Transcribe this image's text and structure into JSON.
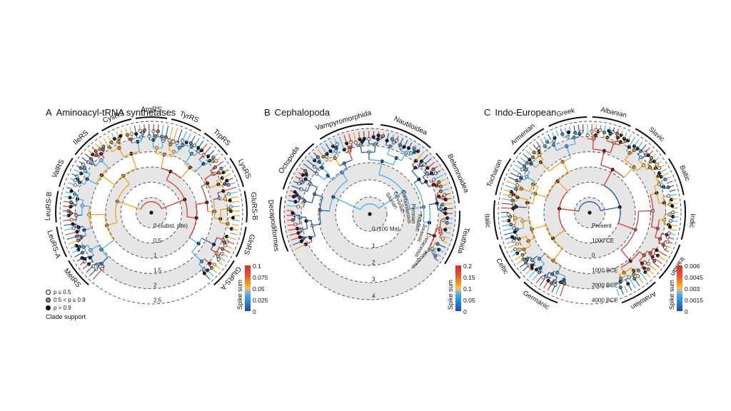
{
  "panels": [
    {
      "letter": "A",
      "title": "Aminoacyl-tRNA synthetases",
      "clades": [
        "MetRS",
        "LeuRS-A",
        "LeuRS-B",
        "ValRS",
        "IleRS",
        "CysRS",
        "ArgRS",
        "TyrRS",
        "TrpRS",
        "LysRS",
        "GluRS-B",
        "GlnRS",
        "GluRS-A"
      ],
      "scale_labels": [
        "2.5",
        "2",
        "1.5",
        "1",
        "0.5",
        "0 (subst. site)"
      ],
      "colorbar": {
        "title": "Spike sum",
        "ticks": [
          "0.1",
          "0.075",
          "0.05",
          "0.025",
          "0"
        ]
      },
      "legend": {
        "items": [
          "p ≤ 0.5",
          "0.5 < p ≤ 0.9",
          "p > 0.9"
        ],
        "caption": "Clade support"
      }
    },
    {
      "letter": "B",
      "title": "Cephalopoda",
      "clades": [
        "Decapodiformes",
        "Octopoda",
        "Vampyromorphida",
        "Nautiloidea",
        "Belemnoidea",
        "Teuthida"
      ],
      "period_labels": [
        "Silurian",
        "Devonian",
        "Carboniferous",
        "Permian",
        "Triassic",
        "Jurassic",
        "Cretaceous",
        "Paleogene"
      ],
      "scale_labels": [
        "4",
        "3",
        "2",
        "1",
        "0 (100 Ma)"
      ],
      "colorbar": {
        "title": "Spike sum",
        "ticks": [
          "0.2",
          "0.15",
          "0.1",
          "0.05",
          "0"
        ]
      }
    },
    {
      "letter": "C",
      "title": "Indo-European",
      "clades": [
        "Germanic",
        "Celtic",
        "Italic",
        "Tocharian",
        "Armenian",
        "Greek",
        "Albanian",
        "Slavic",
        "Baltic",
        "Indic",
        "Iranian",
        "Anatolian"
      ],
      "scale_labels": [
        "4000 BCE",
        "2000 BCE",
        "1000 BCE",
        "0",
        "1000 CE",
        "Present"
      ],
      "colorbar": {
        "title": "Spike sum",
        "ticks": [
          "0.006",
          "0.0045",
          "0.003",
          "0.0015",
          "0"
        ]
      }
    }
  ],
  "colors": {
    "red": "#d7301f",
    "orange": "#f39c12",
    "lightblue": "#3fa9f5",
    "blue": "#1f4e9c",
    "ring": "#e6e6e6",
    "dash": "#444444"
  }
}
